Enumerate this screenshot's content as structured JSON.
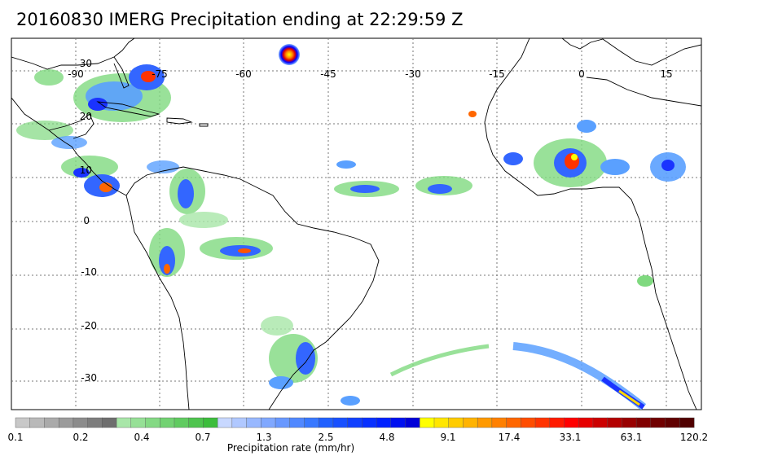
{
  "title": "20160830 IMERG Precipitation ending at 22:29:59 Z",
  "map": {
    "lon_labels": [
      "-90",
      "-75",
      "-60",
      "-45",
      "-30",
      "-15",
      "0",
      "15"
    ],
    "lat_labels": [
      "30",
      "20",
      "10",
      "0",
      "-10",
      "-20",
      "-30"
    ]
  },
  "colorbar": {
    "label": "Precipitation rate (mm/hr)",
    "tick_labels": [
      "0.1",
      "0.2",
      "0.4",
      "0.7",
      "1.3",
      "2.5",
      "4.8",
      "9.1",
      "17.4",
      "33.1",
      "63.1",
      "120.2"
    ]
  }
}
